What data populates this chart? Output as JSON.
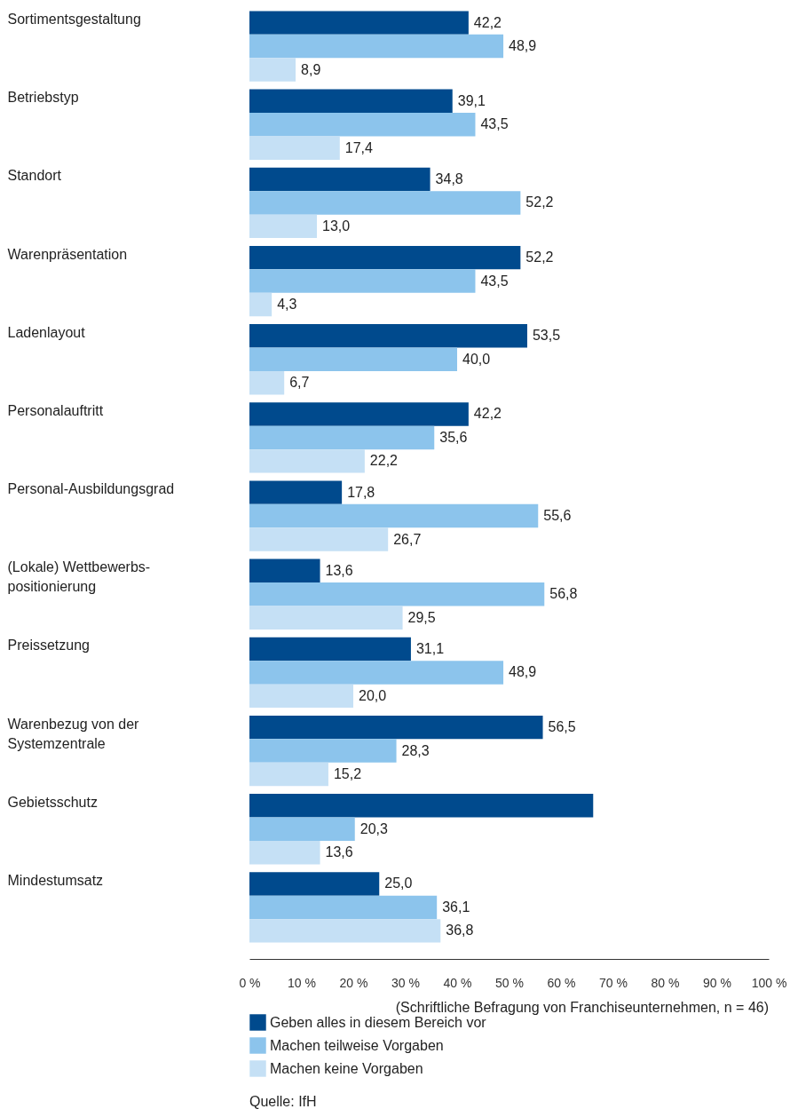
{
  "chart_data": {
    "type": "bar",
    "orientation": "horizontal",
    "categories": [
      "Sortimentsgestaltung",
      "Betriebstyp",
      "Standort",
      "Warenpräsentation",
      "Ladenlayout",
      "Personalauftritt",
      "Personal-Ausbildungsgrad",
      "(Lokale) Wettbewerbs-\npositionierung",
      "Preissetzung",
      "Warenbezug von der\nSystemzentrale",
      "Gebietsschutz",
      "Mindestumsatz"
    ],
    "series": [
      {
        "name": "Geben alles in diesem Bereich vor",
        "color": "#004a8d",
        "values": [
          42.2,
          39.1,
          34.8,
          52.2,
          53.5,
          42.2,
          17.8,
          13.6,
          31.1,
          56.5,
          66.2,
          25.0
        ],
        "value_labels": [
          "42,2",
          "39,1",
          "34,8",
          "52,2",
          "53,5",
          "42,2",
          "17,8",
          "13,6",
          "31,1",
          "56,5",
          null,
          "25,0"
        ]
      },
      {
        "name": "Machen teilweise Vorgaben",
        "color": "#8cc4ec",
        "values": [
          48.9,
          43.5,
          52.2,
          43.5,
          40.0,
          35.6,
          55.6,
          56.8,
          48.9,
          28.3,
          20.3,
          36.1
        ],
        "value_labels": [
          "48,9",
          "43,5",
          "52,2",
          "43,5",
          "40,0",
          "35,6",
          "55,6",
          "56,8",
          "48,9",
          "28,3",
          "20,3",
          "36,1"
        ]
      },
      {
        "name": "Machen keine Vorgaben",
        "color": "#c5e0f5",
        "values": [
          8.9,
          17.4,
          13.0,
          4.3,
          6.7,
          22.2,
          26.7,
          29.5,
          20.0,
          15.2,
          13.6,
          36.8
        ],
        "value_labels": [
          "8,9",
          "17,4",
          "13,0",
          "4,3",
          "6,7",
          "22,2",
          "26,7",
          "29,5",
          "20,0",
          "15,2",
          "13,6",
          "36,8"
        ]
      }
    ],
    "xlim": [
      0,
      100
    ],
    "xticks": [
      {
        "value": 0,
        "label": "0 %"
      },
      {
        "value": 10,
        "label": "10 %"
      },
      {
        "value": 20,
        "label": "20 %"
      },
      {
        "value": 30,
        "label": "30 %"
      },
      {
        "value": 40,
        "label": "40 %"
      },
      {
        "value": 50,
        "label": "50 %"
      },
      {
        "value": 60,
        "label": "60 %"
      },
      {
        "value": 70,
        "label": "70 %"
      },
      {
        "value": 80,
        "label": "80 %"
      },
      {
        "value": 90,
        "label": "90 %"
      },
      {
        "value": 100,
        "label": "100 %"
      }
    ],
    "legend": "bottom",
    "grid": false,
    "annotations": [
      "(Schriftliche Befragung von Franchiseunternehmen, n = 46)",
      "Quelle: IfH"
    ]
  }
}
